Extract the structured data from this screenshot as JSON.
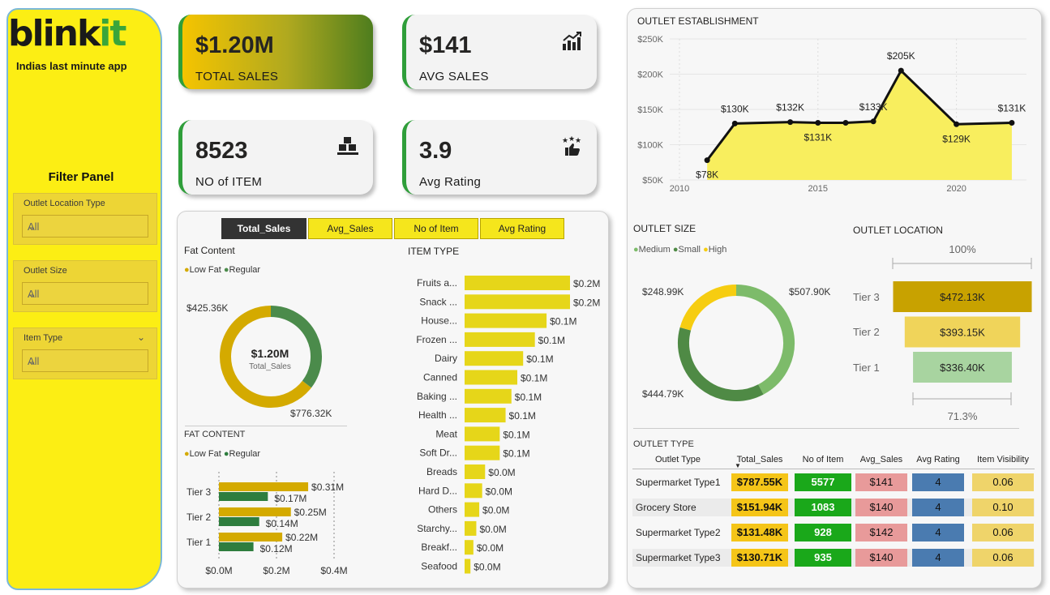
{
  "brand": {
    "logo_main": "blink",
    "logo_accent": "it",
    "tagline": "Indias last minute app"
  },
  "filters": {
    "title": "Filter Panel",
    "items": [
      {
        "label": "Outlet Location Type",
        "value": "All"
      },
      {
        "label": "Outlet Size",
        "value": "All"
      },
      {
        "label": "Item Type",
        "value": "All"
      }
    ]
  },
  "kpis": [
    {
      "value": "$1.20M",
      "label": "TOTAL SALES"
    },
    {
      "value": "$141",
      "label": "AVG SALES",
      "icon": "chart-growth-icon"
    },
    {
      "value": "8523",
      "label": "NO of ITEM",
      "icon": "boxes-icon"
    },
    {
      "value": "3.9",
      "label": "Avg Rating",
      "icon": "rating-thumb-icon"
    }
  ],
  "tabs": [
    "Total_Sales",
    "Avg_Sales",
    "No of Item",
    "Avg Rating"
  ],
  "active_tab": "Total_Sales",
  "fat_content_donut": {
    "title": "Fat Content",
    "legend": [
      "Low Fat",
      "Regular"
    ],
    "center_value": "$1.20M",
    "center_label": "Total_Sales",
    "labels": [
      "$776.32K",
      "$425.36K"
    ],
    "colors": [
      "#d4aa00",
      "#4b8b4b"
    ]
  },
  "fat_content_bars": {
    "title": "FAT CONTENT",
    "legend": [
      "Low Fat",
      "Regular"
    ],
    "tiers": [
      "Tier 3",
      "Tier 2",
      "Tier 1"
    ],
    "low_fat_labels": [
      "$0.31M",
      "$0.25M",
      "$0.22M"
    ],
    "regular_labels": [
      "$0.17M",
      "$0.14M",
      "$0.12M"
    ],
    "x_ticks": [
      "$0.0M",
      "$0.2M",
      "$0.4M"
    ]
  },
  "item_type": {
    "title": "ITEM TYPE",
    "categories": [
      "Fruits a...",
      "Snack ...",
      "House...",
      "Frozen ...",
      "Dairy",
      "Canned",
      "Baking ...",
      "Health ...",
      "Meat",
      "Soft Dr...",
      "Breads",
      "Hard D...",
      "Others",
      "Starchy...",
      "Breakf...",
      "Seafood"
    ],
    "labels": [
      "$0.2M",
      "$0.2M",
      "$0.1M",
      "$0.1M",
      "$0.1M",
      "$0.1M",
      "$0.1M",
      "$0.1M",
      "$0.1M",
      "$0.1M",
      "$0.0M",
      "$0.0M",
      "$0.0M",
      "$0.0M",
      "$0.0M",
      "$0.0M"
    ]
  },
  "outlet_establishment": {
    "title": "OUTLET ESTABLISHMENT",
    "y_ticks": [
      "$250K",
      "$200K",
      "$150K",
      "$100K",
      "$50K"
    ],
    "x_ticks": [
      "2010",
      "2015",
      "2020"
    ],
    "point_labels": [
      "$78K",
      "$130K",
      "$132K",
      "$131K",
      "$133K",
      "$205K",
      "$129K",
      "$131K"
    ]
  },
  "outlet_size": {
    "title": "OUTLET SIZE",
    "legend": [
      "Medium",
      "Small",
      "High"
    ],
    "labels": [
      "$507.90K",
      "$444.79K",
      "$248.99K"
    ],
    "colors": [
      "#7dbb6a",
      "#4f8a45",
      "#f6cd11"
    ]
  },
  "outlet_location": {
    "title": "OUTLET LOCATION",
    "top_pct": "100%",
    "bottom_pct": "71.3%",
    "tiers": [
      "Tier 3",
      "Tier 2",
      "Tier 1"
    ],
    "labels": [
      "$472.13K",
      "$393.15K",
      "$336.40K"
    ],
    "colors": [
      "#c8a200",
      "#f0d45a",
      "#a8d4a0"
    ]
  },
  "outlet_type": {
    "title": "OUTLET TYPE",
    "headers": [
      "Outlet Type",
      "Total_Sales",
      "No of Item",
      "Avg_Sales",
      "Avg Rating",
      "Item Visibility"
    ],
    "rows": [
      [
        "Supermarket Type1",
        "$787.55K",
        "5577",
        "$141",
        "4",
        "0.06"
      ],
      [
        "Grocery Store",
        "$151.94K",
        "1083",
        "$140",
        "4",
        "0.10"
      ],
      [
        "Supermarket Type2",
        "$131.48K",
        "928",
        "$142",
        "4",
        "0.06"
      ],
      [
        "Supermarket Type3",
        "$130.71K",
        "935",
        "$140",
        "4",
        "0.06"
      ]
    ]
  },
  "chart_data": [
    {
      "type": "pie",
      "title": "Fat Content",
      "categories": [
        "Low Fat",
        "Regular"
      ],
      "values": [
        776.32,
        425.36
      ]
    },
    {
      "type": "bar",
      "title": "FAT CONTENT",
      "categories": [
        "Tier 3",
        "Tier 2",
        "Tier 1"
      ],
      "series": [
        {
          "name": "Low Fat",
          "values": [
            0.31,
            0.25,
            0.22
          ]
        },
        {
          "name": "Regular",
          "values": [
            0.17,
            0.14,
            0.12
          ]
        }
      ],
      "xlim": [
        0,
        0.4
      ]
    },
    {
      "type": "bar",
      "title": "ITEM TYPE",
      "categories": [
        "Fruits a...",
        "Snack ...",
        "House...",
        "Frozen ...",
        "Dairy",
        "Canned",
        "Baking ...",
        "Health ...",
        "Meat",
        "Soft Dr...",
        "Breads",
        "Hard D...",
        "Others",
        "Starchy...",
        "Breakf...",
        "Seafood"
      ],
      "values": [
        0.18,
        0.18,
        0.14,
        0.12,
        0.1,
        0.09,
        0.08,
        0.07,
        0.06,
        0.06,
        0.035,
        0.03,
        0.025,
        0.02,
        0.015,
        0.01
      ]
    },
    {
      "type": "area",
      "title": "OUTLET ESTABLISHMENT",
      "x": [
        2011,
        2012,
        2014,
        2015,
        2016,
        2017,
        2018,
        2020,
        2022
      ],
      "values": [
        78,
        130,
        132,
        131,
        131,
        133,
        205,
        129,
        131
      ],
      "ylim": [
        50,
        250
      ],
      "xlim": [
        2010,
        2022
      ]
    },
    {
      "type": "pie",
      "title": "OUTLET SIZE",
      "categories": [
        "Medium",
        "Small",
        "High"
      ],
      "values": [
        507.9,
        444.79,
        248.99
      ]
    },
    {
      "type": "bar",
      "title": "OUTLET LOCATION",
      "categories": [
        "Tier 3",
        "Tier 2",
        "Tier 1"
      ],
      "values": [
        472.13,
        393.15,
        336.4
      ]
    }
  ]
}
